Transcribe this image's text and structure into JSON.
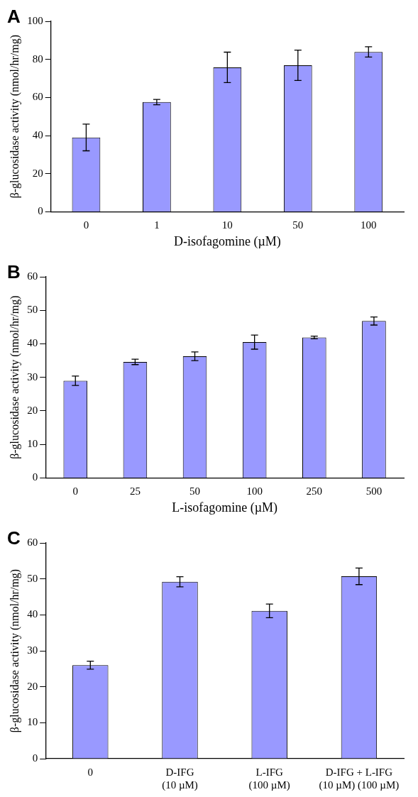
{
  "chart_data": [
    {
      "type": "bar",
      "title": "A",
      "xlabel": "D-isofagomine (µM)",
      "ylabel": "β-glucosidase activity (nmol/hr/mg)",
      "categories": [
        "0",
        "1",
        "10",
        "50",
        "100"
      ],
      "values": [
        39,
        57.6,
        75.8,
        76.9,
        83.9
      ],
      "errors": [
        7,
        1.4,
        8,
        8,
        2.7
      ],
      "color": "#9999ff",
      "ylim": [
        0,
        100
      ],
      "yticks": [
        0,
        20,
        40,
        60,
        80,
        100
      ],
      "grid": false,
      "legend": false
    },
    {
      "type": "bar",
      "title": "B",
      "xlabel": "L-isofagomine (µM)",
      "ylabel": "β-glucosidase activity (nmol/hr/mg)",
      "categories": [
        "0",
        "25",
        "50",
        "100",
        "250",
        "500"
      ],
      "values": [
        29,
        34.6,
        36.3,
        40.5,
        41.9,
        46.8
      ],
      "errors": [
        1.4,
        0.8,
        1.3,
        2.1,
        0.4,
        1.2
      ],
      "color": "#9999ff",
      "ylim": [
        0,
        60
      ],
      "yticks": [
        0,
        10,
        20,
        30,
        40,
        50,
        60
      ],
      "grid": false,
      "legend": false
    },
    {
      "type": "bar",
      "title": "C",
      "ylabel": "β-glucosidase activity (nmol/hr/mg)",
      "categories": [
        "0",
        "D-IFG (10 µM)",
        "L-IFG (100 µM)",
        "D-IFG + L-IFG (10 µM) (100 µM)"
      ],
      "values": [
        26,
        49.2,
        41.1,
        50.7
      ],
      "errors": [
        1.1,
        1.4,
        1.9,
        2.3
      ],
      "color": "#9999ff",
      "ylim": [
        0,
        60
      ],
      "yticks": [
        0,
        10,
        20,
        30,
        40,
        50,
        60
      ],
      "grid": false,
      "legend": false
    }
  ]
}
